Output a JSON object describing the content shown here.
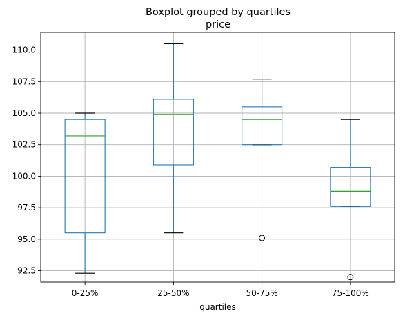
{
  "chart_data": {
    "type": "box",
    "title": "Boxplot grouped by quartiles",
    "subtitle": "price",
    "xlabel": "quartiles",
    "ylabel": "",
    "ylim": [
      91.6,
      111.4
    ],
    "yticks": [
      92.5,
      95.0,
      97.5,
      100.0,
      102.5,
      105.0,
      107.5,
      110.0
    ],
    "ytick_labels": [
      "92.5",
      "95.0",
      "97.5",
      "100.0",
      "102.5",
      "105.0",
      "107.5",
      "110.0"
    ],
    "grid": true,
    "categories": [
      "0-25%",
      "25-50%",
      "50-75%",
      "75-100%"
    ],
    "boxes": [
      {
        "category": "0-25%",
        "whisker_low": 92.3,
        "q1": 95.5,
        "median": 103.2,
        "q3": 104.5,
        "whisker_high": 105.0,
        "fliers": []
      },
      {
        "category": "25-50%",
        "whisker_low": 95.5,
        "q1": 100.9,
        "median": 104.9,
        "q3": 106.1,
        "whisker_high": 110.5,
        "fliers": []
      },
      {
        "category": "50-75%",
        "whisker_low": 102.5,
        "q1": 102.5,
        "median": 104.5,
        "q3": 105.5,
        "whisker_high": 107.7,
        "fliers": [
          95.1
        ]
      },
      {
        "category": "75-100%",
        "whisker_low": 97.6,
        "q1": 97.6,
        "median": 98.8,
        "q3": 100.7,
        "whisker_high": 104.5,
        "fliers": [
          92.0
        ]
      }
    ],
    "colors": {
      "box": "#1f77b4",
      "median": "#2ca02c",
      "cap": "#000000",
      "grid": "#b0b0b0"
    }
  }
}
